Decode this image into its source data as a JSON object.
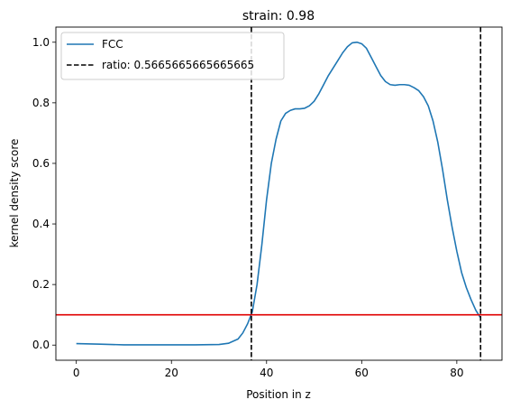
{
  "chart_data": {
    "type": "line",
    "title": "strain: 0.98",
    "xlabel": "Position in z",
    "ylabel": "kernel density score",
    "xlim": [
      -4.3,
      89.5
    ],
    "ylim": [
      -0.05,
      1.05
    ],
    "xticks": [
      0,
      20,
      40,
      60,
      80
    ],
    "yticks": [
      0.0,
      0.2,
      0.4,
      0.6,
      0.8,
      1.0
    ],
    "xtick_labels": [
      "0",
      "20",
      "40",
      "60",
      "80"
    ],
    "ytick_labels": [
      "0.0",
      "0.2",
      "0.4",
      "0.6",
      "0.8",
      "1.0"
    ],
    "grid": false,
    "legend_position": "upper-left",
    "series": [
      {
        "name": "FCC",
        "color": "#1f77b4",
        "style": "solid",
        "points": [
          [
            0,
            0.005
          ],
          [
            5,
            0.003
          ],
          [
            10,
            0.001
          ],
          [
            15,
            0.001
          ],
          [
            20,
            0.001
          ],
          [
            25,
            0.001
          ],
          [
            30,
            0.002
          ],
          [
            32,
            0.006
          ],
          [
            34,
            0.02
          ],
          [
            35,
            0.04
          ],
          [
            36,
            0.07
          ],
          [
            37,
            0.11
          ],
          [
            38,
            0.2
          ],
          [
            39,
            0.33
          ],
          [
            40,
            0.48
          ],
          [
            41,
            0.6
          ],
          [
            42,
            0.68
          ],
          [
            43,
            0.74
          ],
          [
            44,
            0.765
          ],
          [
            45,
            0.775
          ],
          [
            46,
            0.78
          ],
          [
            47,
            0.78
          ],
          [
            48,
            0.782
          ],
          [
            49,
            0.79
          ],
          [
            50,
            0.805
          ],
          [
            51,
            0.83
          ],
          [
            52,
            0.86
          ],
          [
            53,
            0.89
          ],
          [
            54,
            0.915
          ],
          [
            55,
            0.94
          ],
          [
            56,
            0.965
          ],
          [
            57,
            0.985
          ],
          [
            58,
            0.998
          ],
          [
            59,
            1.0
          ],
          [
            60,
            0.995
          ],
          [
            61,
            0.98
          ],
          [
            62,
            0.95
          ],
          [
            63,
            0.92
          ],
          [
            64,
            0.89
          ],
          [
            65,
            0.87
          ],
          [
            66,
            0.86
          ],
          [
            67,
            0.858
          ],
          [
            68,
            0.86
          ],
          [
            69,
            0.86
          ],
          [
            70,
            0.858
          ],
          [
            71,
            0.85
          ],
          [
            72,
            0.84
          ],
          [
            73,
            0.82
          ],
          [
            74,
            0.79
          ],
          [
            75,
            0.74
          ],
          [
            76,
            0.67
          ],
          [
            77,
            0.58
          ],
          [
            78,
            0.48
          ],
          [
            79,
            0.39
          ],
          [
            80,
            0.31
          ],
          [
            81,
            0.24
          ],
          [
            82,
            0.19
          ],
          [
            83,
            0.15
          ],
          [
            84,
            0.115
          ],
          [
            85,
            0.09
          ]
        ]
      },
      {
        "name": "ratio: 0.5665665665665665",
        "color": "#000000",
        "style": "dashed",
        "vlines": [
          36.8,
          85.0
        ]
      }
    ],
    "hline": {
      "y": 0.1,
      "color": "#e00000"
    }
  }
}
